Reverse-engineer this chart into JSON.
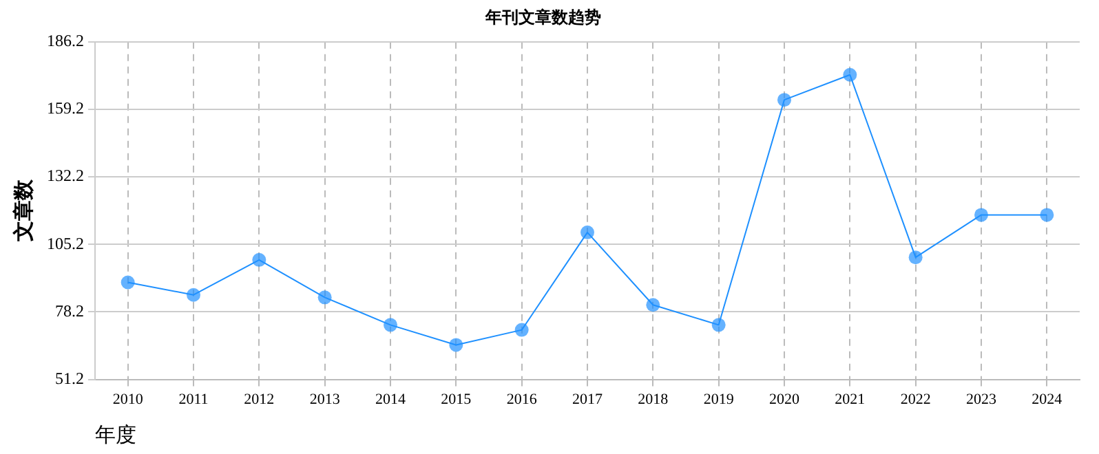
{
  "chart_data": {
    "type": "line",
    "title": "年刊文章数趋势",
    "xlabel": "年度",
    "ylabel": "文章数",
    "categories": [
      "2010",
      "2011",
      "2012",
      "2013",
      "2014",
      "2015",
      "2016",
      "2017",
      "2018",
      "2019",
      "2020",
      "2021",
      "2022",
      "2023",
      "2024"
    ],
    "series": [
      {
        "color": "#1e90ff",
        "values": [
          90,
          85,
          99,
          84,
          73,
          65,
          71,
          110,
          81,
          73,
          163,
          173,
          100,
          117,
          117
        ]
      }
    ],
    "ylim": [
      51.2,
      186.2
    ],
    "yticks": [
      51.2,
      78.2,
      105.2,
      132.2,
      159.2,
      186.2
    ],
    "grid": true,
    "marker": "circle",
    "line_style": "solid",
    "legend": false
  }
}
